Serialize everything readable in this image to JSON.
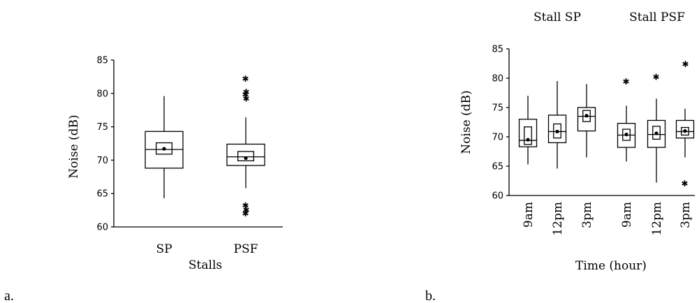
{
  "figure": {
    "panel_labels": [
      "a.",
      "b."
    ]
  },
  "chart_data": [
    {
      "type": "box",
      "panel": "a.",
      "title": "",
      "xlabel": "Stalls",
      "ylabel": "Noise (dB)",
      "ylim": [
        60,
        85
      ],
      "yticks": [
        60,
        65,
        70,
        75,
        80,
        85
      ],
      "categories": [
        "SP",
        "PSF"
      ],
      "boxes": [
        {
          "category": "SP",
          "min": 64.3,
          "q1": 68.8,
          "median": 71.6,
          "q3": 74.3,
          "max": 79.6,
          "mean": 71.7,
          "ci": [
            70.9,
            72.6
          ],
          "outliers": []
        },
        {
          "category": "PSF",
          "min": 65.8,
          "q1": 69.2,
          "median": 70.5,
          "q3": 72.4,
          "max": 76.4,
          "mean": 70.3,
          "ci": [
            69.9,
            71.3
          ],
          "outliers": [
            62.0,
            62.5,
            63.2,
            79.2,
            79.8,
            80.2,
            82.2
          ]
        }
      ]
    },
    {
      "type": "box",
      "panel": "b.",
      "title": "",
      "xlabel": "Time (hour)",
      "ylabel": "Noise (dB)",
      "ylim": [
        60,
        85
      ],
      "yticks": [
        60,
        65,
        70,
        75,
        80,
        85
      ],
      "groups": [
        "Stall SP",
        "Stall PSF"
      ],
      "categories": [
        "9am",
        "12pm",
        "3pm",
        "9am",
        "12pm",
        "3pm"
      ],
      "boxes": [
        {
          "group": "Stall SP",
          "category": "9am",
          "min": 65.3,
          "q1": 68.3,
          "median": 69.4,
          "q3": 73.0,
          "max": 77.0,
          "mean": 69.5,
          "ci": [
            68.7,
            71.7
          ],
          "outliers": []
        },
        {
          "group": "Stall SP",
          "category": "12pm",
          "min": 64.6,
          "q1": 69.0,
          "median": 70.9,
          "q3": 73.7,
          "max": 79.5,
          "mean": 70.9,
          "ci": [
            69.8,
            72.2
          ],
          "outliers": []
        },
        {
          "group": "Stall SP",
          "category": "3pm",
          "min": 66.5,
          "q1": 71.0,
          "median": 73.5,
          "q3": 75.0,
          "max": 79.0,
          "mean": 73.6,
          "ci": [
            72.6,
            74.5
          ],
          "outliers": []
        },
        {
          "group": "Stall PSF",
          "category": "9am",
          "min": 65.8,
          "q1": 68.2,
          "median": 70.3,
          "q3": 72.3,
          "max": 75.3,
          "mean": 70.4,
          "ci": [
            69.4,
            71.3
          ],
          "outliers": [
            79.4
          ]
        },
        {
          "group": "Stall PSF",
          "category": "12pm",
          "min": 62.2,
          "q1": 68.2,
          "median": 70.4,
          "q3": 72.8,
          "max": 76.5,
          "mean": 70.6,
          "ci": [
            69.6,
            71.8
          ],
          "outliers": [
            80.2
          ]
        },
        {
          "group": "Stall PSF",
          "category": "3pm",
          "min": 66.5,
          "q1": 69.8,
          "median": 70.9,
          "q3": 72.8,
          "max": 74.8,
          "mean": 71.0,
          "ci": [
            70.3,
            71.6
          ],
          "outliers": [
            62.0,
            82.4
          ]
        }
      ]
    }
  ]
}
